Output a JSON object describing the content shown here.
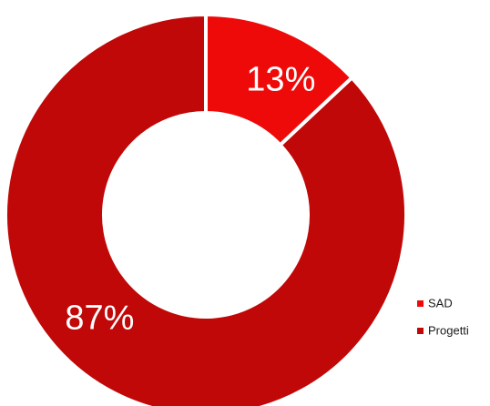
{
  "chart_data": {
    "type": "pie",
    "donut": true,
    "categories": [
      "SAD",
      "Progetti"
    ],
    "values": [
      13,
      87
    ],
    "data_labels": [
      "13%",
      "87%"
    ],
    "colors": [
      "#ef0a0a",
      "#c00808"
    ],
    "legend_position": "bottom-right"
  }
}
